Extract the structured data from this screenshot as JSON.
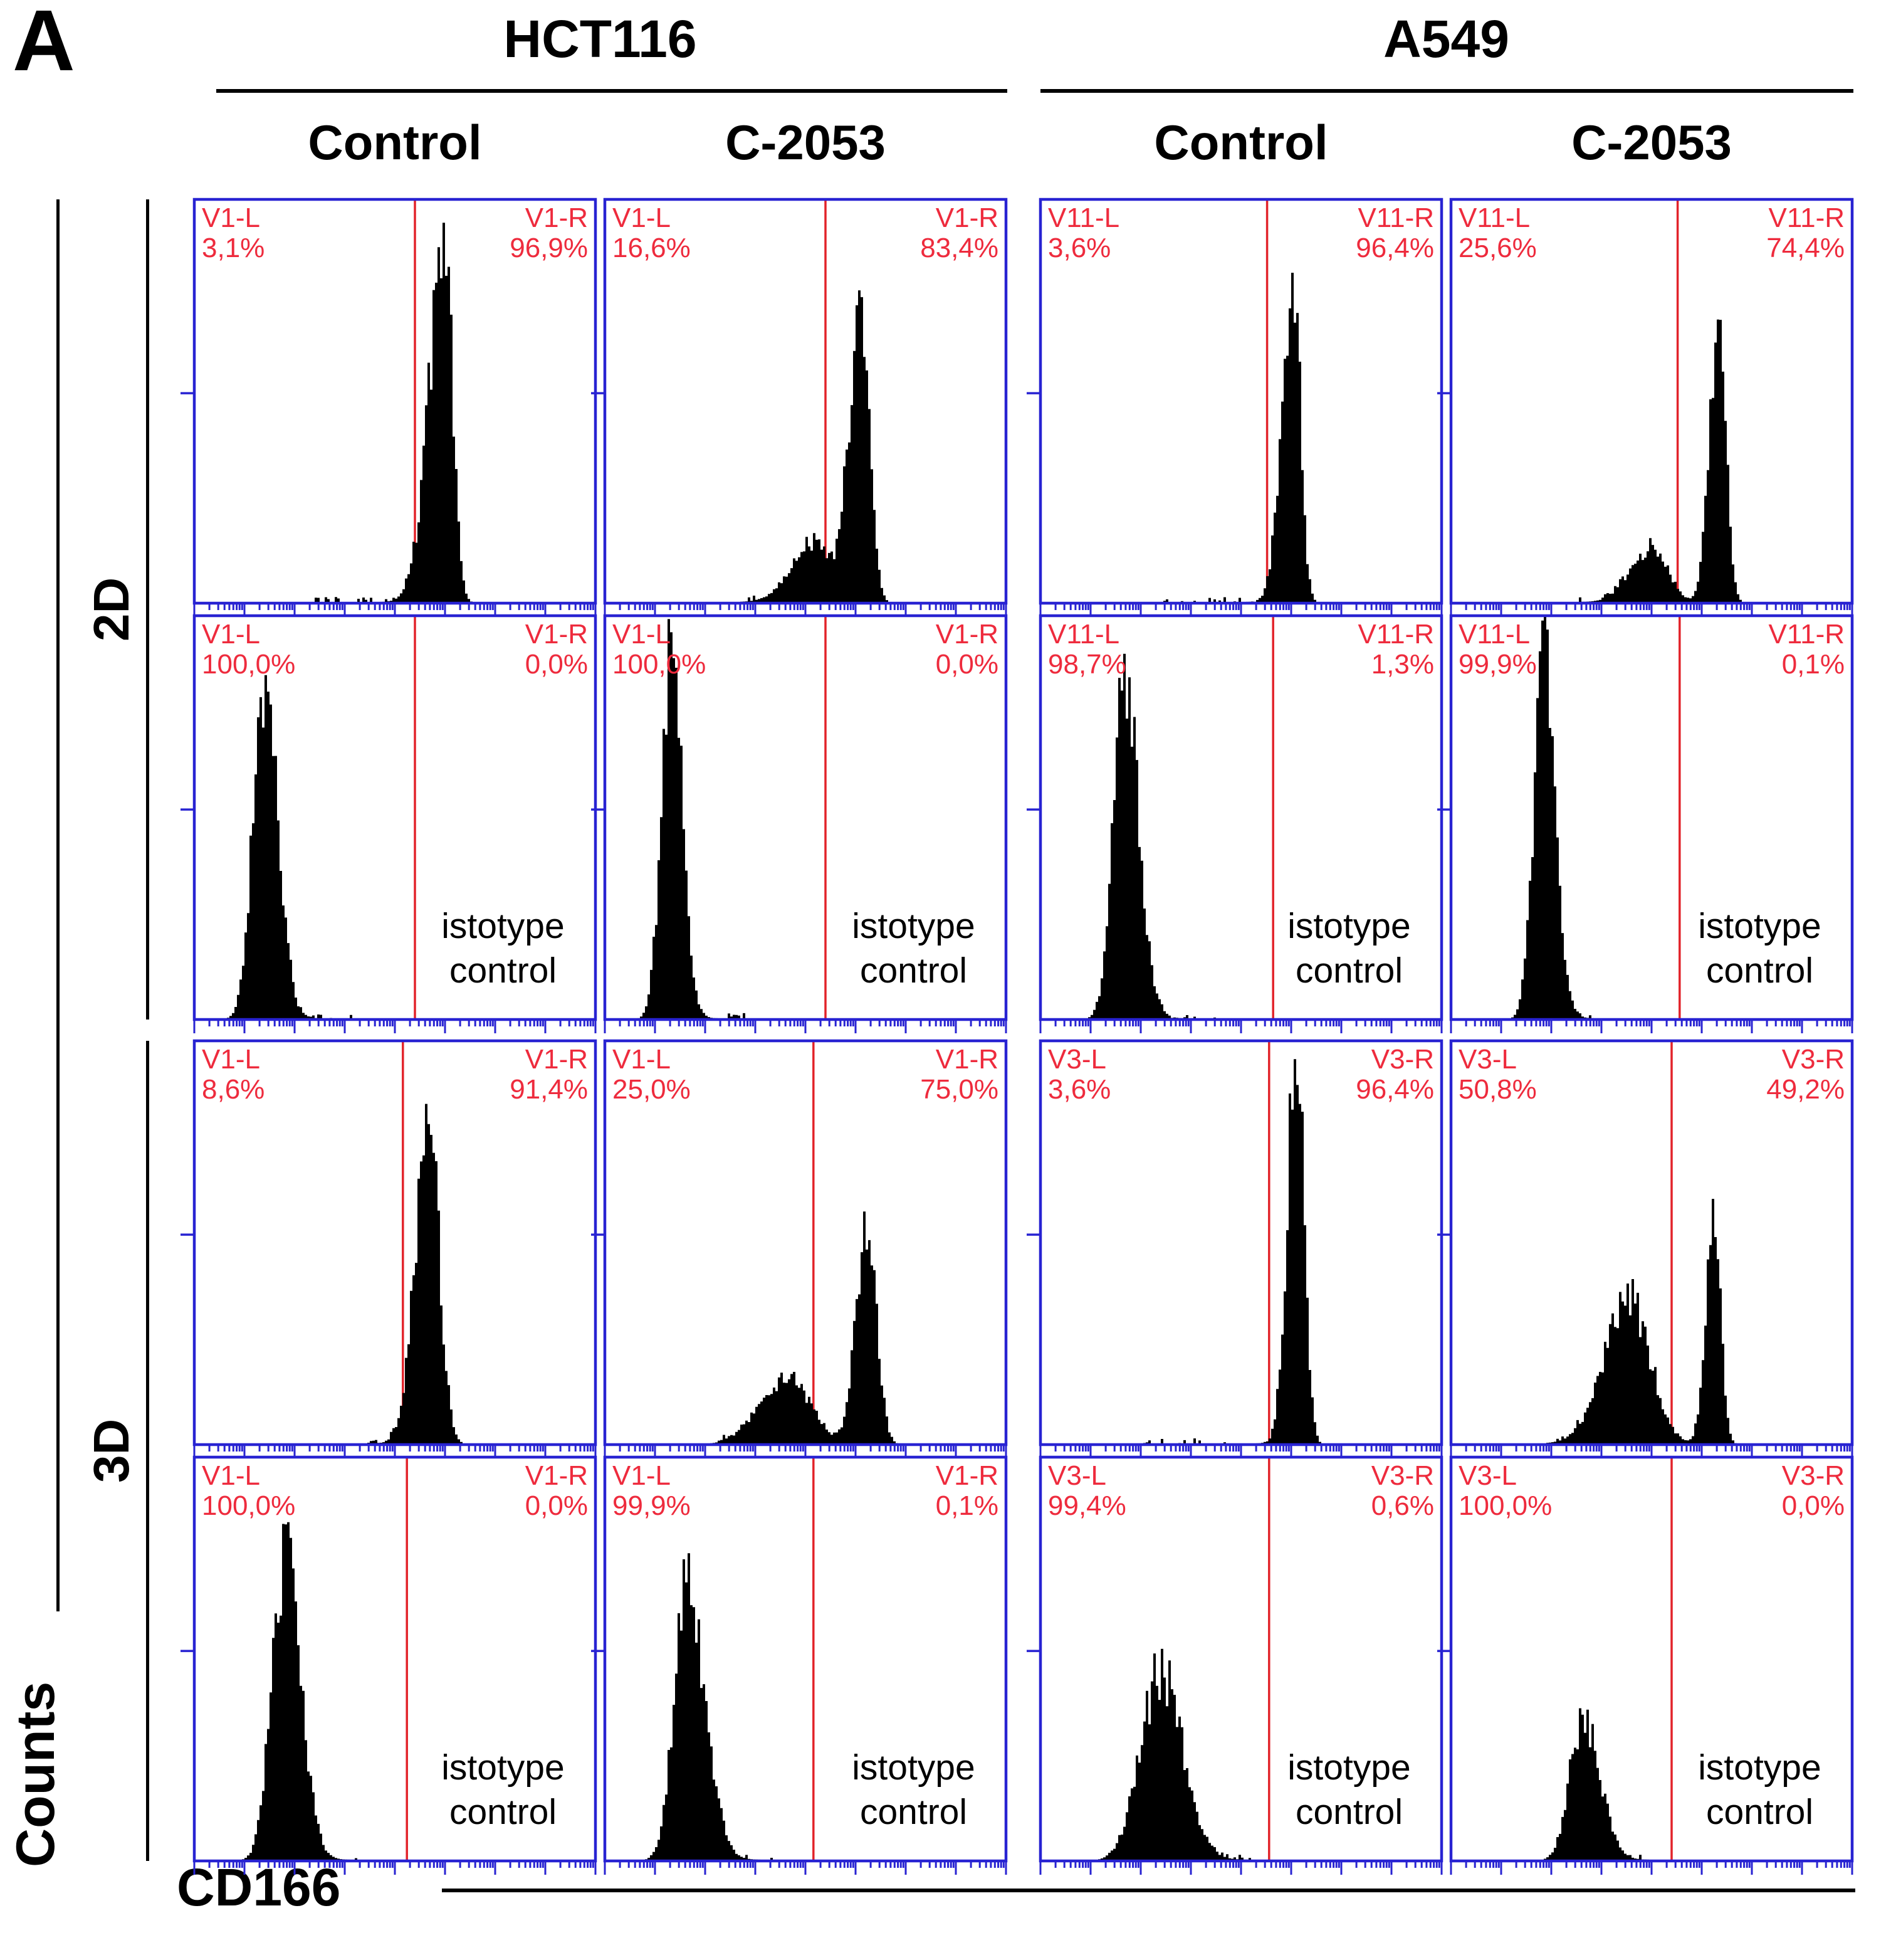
{
  "figure": {
    "panel_letter": "A",
    "cell_lines": [
      "HCT116",
      "A549"
    ],
    "col_headers": [
      "Control",
      "C-2053",
      "Control",
      "C-2053"
    ],
    "row_groups": [
      "2D",
      "3D"
    ],
    "y_axis_label": "Counts",
    "x_axis_label": "CD166",
    "isotype_lines": [
      "istotype",
      "control"
    ]
  },
  "colors": {
    "frame_blue": "#2823d2",
    "gate_red": "#e2232a",
    "label_red": "#ee2b3d",
    "histogram_black": "#000000",
    "text_black": "#000000"
  },
  "chart_data": {
    "type": "histogram-grid",
    "description": "Flow cytometry CD166 surface expression histograms; x axis CD166 intensity (log-style ticks), y axis Counts; red vertical gate splits each panel into left/right regions with percentages shown.",
    "columns": [
      {
        "cell_line": "HCT116",
        "treatment": "Control"
      },
      {
        "cell_line": "HCT116",
        "treatment": "C-2053"
      },
      {
        "cell_line": "A549",
        "treatment": "Control"
      },
      {
        "cell_line": "A549",
        "treatment": "C-2053"
      }
    ],
    "rows": [
      {
        "culture": "2D",
        "stain": "CD166"
      },
      {
        "culture": "2D",
        "stain": "isotype control"
      },
      {
        "culture": "3D",
        "stain": "CD166"
      },
      {
        "culture": "3D",
        "stain": "isotype control"
      }
    ],
    "panels": [
      {
        "row": 0,
        "col": 0,
        "left_gate": "V1-L",
        "left_pct": "3,1%",
        "right_gate": "V1-R",
        "right_pct": "96,9%",
        "isotype": false,
        "gate_x": 0.55,
        "peaks": [
          {
            "c": 0.625,
            "h": 0.87,
            "wl": 0.04,
            "wr": 0.02
          }
        ],
        "floor": [
          0.3,
          0.58
        ]
      },
      {
        "row": 0,
        "col": 1,
        "left_gate": "V1-L",
        "left_pct": "16,6%",
        "right_gate": "V1-R",
        "right_pct": "83,4%",
        "isotype": false,
        "gate_x": 0.55,
        "peaks": [
          {
            "c": 0.64,
            "h": 0.7,
            "wl": 0.032,
            "wr": 0.021
          },
          {
            "c": 0.52,
            "h": 0.15,
            "wl": 0.055,
            "wr": 0.035
          }
        ],
        "floor": [
          0.34,
          0.48
        ]
      },
      {
        "row": 0,
        "col": 2,
        "left_gate": "V11-L",
        "left_pct": "3,6%",
        "right_gate": "V11-R",
        "right_pct": "96,4%",
        "isotype": false,
        "gate_x": 0.565,
        "peaks": [
          {
            "c": 0.63,
            "h": 0.8,
            "wl": 0.028,
            "wr": 0.018
          }
        ],
        "floor": [
          0.28,
          0.58
        ]
      },
      {
        "row": 0,
        "col": 3,
        "left_gate": "V11-L",
        "left_pct": "25,6%",
        "right_gate": "V11-R",
        "right_pct": "74,4%",
        "isotype": false,
        "gate_x": 0.565,
        "peaks": [
          {
            "c": 0.668,
            "h": 0.74,
            "wl": 0.023,
            "wr": 0.018
          },
          {
            "c": 0.5,
            "h": 0.14,
            "wl": 0.05,
            "wr": 0.04
          }
        ],
        "floor": [
          0.32,
          0.46
        ]
      },
      {
        "row": 1,
        "col": 0,
        "left_gate": "V1-L",
        "left_pct": "100,0%",
        "right_gate": "V1-R",
        "right_pct": "0,0%",
        "isotype": true,
        "gate_x": 0.55,
        "peaks": [
          {
            "c": 0.175,
            "h": 0.84,
            "wl": 0.028,
            "wr": 0.034
          }
        ],
        "floor": [
          0.26,
          0.4
        ]
      },
      {
        "row": 1,
        "col": 1,
        "left_gate": "V1-L",
        "left_pct": "100,0%",
        "right_gate": "V1-R",
        "right_pct": "0,0%",
        "isotype": true,
        "gate_x": 0.55,
        "peaks": [
          {
            "c": 0.165,
            "h": 0.9,
            "wl": 0.024,
            "wr": 0.028
          }
        ],
        "floor": [
          0.24,
          0.38
        ]
      },
      {
        "row": 1,
        "col": 2,
        "left_gate": "V11-L",
        "left_pct": "98,7%",
        "right_gate": "V11-R",
        "right_pct": "1,3%",
        "isotype": true,
        "gate_x": 0.58,
        "peaks": [
          {
            "c": 0.21,
            "h": 0.82,
            "wl": 0.028,
            "wr": 0.036
          }
        ],
        "floor": [
          0.3,
          0.44
        ]
      },
      {
        "row": 1,
        "col": 3,
        "left_gate": "V11-L",
        "left_pct": "99,9%",
        "right_gate": "V11-R",
        "right_pct": "0,1%",
        "isotype": true,
        "gate_x": 0.57,
        "peaks": [
          {
            "c": 0.23,
            "h": 0.89,
            "wl": 0.024,
            "wr": 0.03
          }
        ],
        "floor": [
          0.3,
          0.42
        ]
      },
      {
        "row": 2,
        "col": 0,
        "left_gate": "V1-L",
        "left_pct": "8,6%",
        "right_gate": "V1-R",
        "right_pct": "91,4%",
        "isotype": false,
        "gate_x": 0.52,
        "peaks": [
          {
            "c": 0.585,
            "h": 0.79,
            "wl": 0.034,
            "wr": 0.026
          }
        ],
        "floor": [
          0.38,
          0.5
        ]
      },
      {
        "row": 2,
        "col": 1,
        "left_gate": "V1-L",
        "left_pct": "25,0%",
        "right_gate": "V1-R",
        "right_pct": "75,0%",
        "isotype": false,
        "gate_x": 0.52,
        "peaks": [
          {
            "c": 0.655,
            "h": 0.55,
            "wl": 0.028,
            "wr": 0.023
          },
          {
            "c": 0.46,
            "h": 0.16,
            "wl": 0.07,
            "wr": 0.055
          }
        ],
        "floor": [
          0.28,
          0.4
        ]
      },
      {
        "row": 2,
        "col": 2,
        "left_gate": "V3-L",
        "left_pct": "3,6%",
        "right_gate": "V3-R",
        "right_pct": "96,4%",
        "isotype": false,
        "gate_x": 0.57,
        "peaks": [
          {
            "c": 0.64,
            "h": 1.0,
            "wl": 0.024,
            "wr": 0.018
          }
        ],
        "floor": [
          0.25,
          0.56
        ]
      },
      {
        "row": 2,
        "col": 3,
        "left_gate": "V3-L",
        "left_pct": "50,8%",
        "right_gate": "V3-R",
        "right_pct": "49,2%",
        "isotype": false,
        "gate_x": 0.55,
        "peaks": [
          {
            "c": 0.655,
            "h": 0.58,
            "wl": 0.02,
            "wr": 0.017
          },
          {
            "c": 0.445,
            "h": 0.36,
            "wl": 0.062,
            "wr": 0.052
          }
        ],
        "floor": [
          0.24,
          0.36
        ]
      },
      {
        "row": 3,
        "col": 0,
        "left_gate": "V1-L",
        "left_pct": "100,0%",
        "right_gate": "V1-R",
        "right_pct": "0,0%",
        "isotype": true,
        "gate_x": 0.53,
        "peaks": [
          {
            "c": 0.225,
            "h": 0.75,
            "wl": 0.032,
            "wr": 0.04
          }
        ],
        "floor": [
          0.28,
          0.42
        ]
      },
      {
        "row": 3,
        "col": 1,
        "left_gate": "V1-L",
        "left_pct": "99,9%",
        "right_gate": "V1-R",
        "right_pct": "0,1%",
        "isotype": true,
        "gate_x": 0.52,
        "peaks": [
          {
            "c": 0.205,
            "h": 0.68,
            "wl": 0.032,
            "wr": 0.045
          }
        ],
        "floor": [
          0.28,
          0.42
        ]
      },
      {
        "row": 3,
        "col": 2,
        "left_gate": "V3-L",
        "left_pct": "99,4%",
        "right_gate": "V3-R",
        "right_pct": "0,6%",
        "isotype": true,
        "gate_x": 0.57,
        "peaks": [
          {
            "c": 0.3,
            "h": 0.47,
            "wl": 0.05,
            "wr": 0.055
          }
        ],
        "floor": [
          0.42,
          0.54
        ]
      },
      {
        "row": 3,
        "col": 3,
        "left_gate": "V3-L",
        "left_pct": "100,0%",
        "right_gate": "V3-R",
        "right_pct": "0,0%",
        "isotype": true,
        "gate_x": 0.55,
        "peaks": [
          {
            "c": 0.33,
            "h": 0.36,
            "wl": 0.033,
            "wr": 0.042
          }
        ],
        "floor": [
          0.4,
          0.5
        ]
      }
    ]
  }
}
